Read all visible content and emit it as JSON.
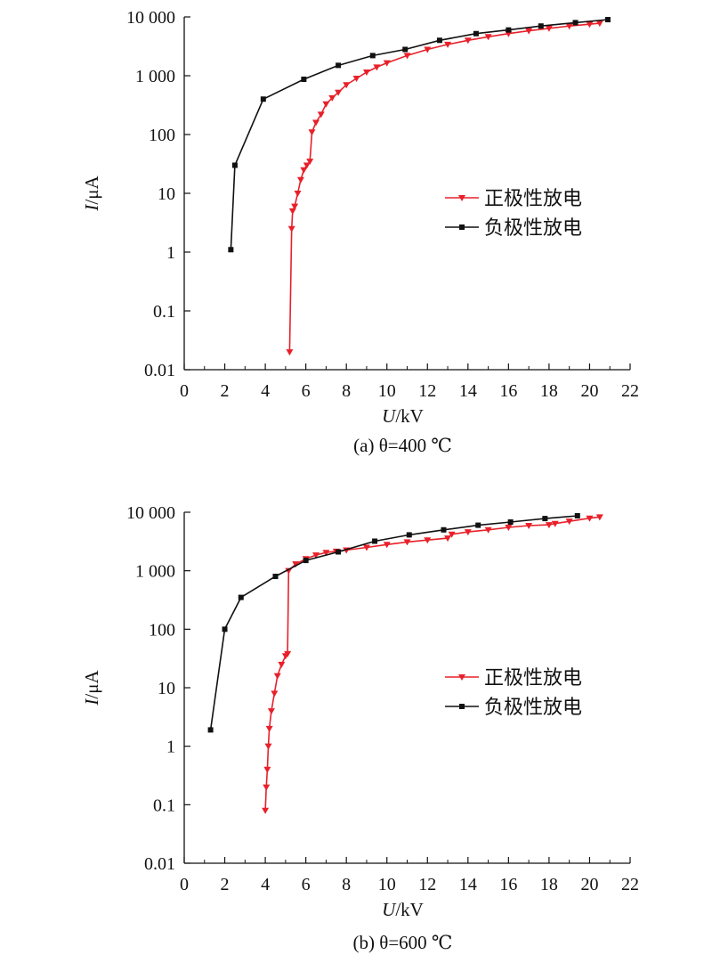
{
  "chart_data": [
    {
      "type": "line",
      "caption": "(a) θ=400 ℃",
      "xlabel_var": "U",
      "xlabel_unit": "/kV",
      "ylabel_var": "I",
      "ylabel_unit": "/μA",
      "xlim": [
        0,
        22
      ],
      "ylim": [
        0.01,
        10000
      ],
      "y_scale": "log",
      "x_ticks": [
        "0",
        "2",
        "4",
        "6",
        "8",
        "10",
        "12",
        "14",
        "16",
        "18",
        "20",
        "22"
      ],
      "y_ticks": [
        "0.01",
        "0.1",
        "1",
        "10",
        "100",
        "1 000",
        "10 000"
      ],
      "legend_position": "right-middle",
      "series": [
        {
          "name": "正极性放电",
          "color": "#e8202a",
          "marker": "triangle-down",
          "x": [
            5.2,
            5.3,
            5.35,
            5.45,
            5.6,
            5.75,
            5.9,
            6.05,
            6.2,
            6.3,
            6.5,
            6.75,
            7.0,
            7.3,
            7.6,
            8.0,
            8.5,
            9.0,
            9.5,
            10.0,
            11.0,
            12.0,
            13.0,
            14.0,
            15.0,
            16.0,
            17.0,
            18.0,
            19.0,
            20.0,
            20.5
          ],
          "y": [
            0.02,
            2.5,
            5,
            6,
            10,
            17,
            25,
            30,
            35,
            110,
            160,
            220,
            330,
            420,
            520,
            700,
            900,
            1150,
            1400,
            1650,
            2200,
            2800,
            3400,
            4000,
            4600,
            5200,
            5800,
            6400,
            7000,
            7500,
            7800
          ]
        },
        {
          "name": "负极性放电",
          "color": "#111111",
          "marker": "square",
          "x": [
            2.3,
            2.5,
            3.9,
            5.9,
            7.6,
            9.3,
            10.9,
            12.6,
            14.4,
            16.0,
            17.6,
            19.3,
            20.9
          ],
          "y": [
            1.1,
            30,
            400,
            870,
            1500,
            2200,
            2800,
            4000,
            5200,
            6000,
            7000,
            8000,
            9000
          ]
        }
      ]
    },
    {
      "type": "line",
      "caption": "(b) θ=600 ℃",
      "xlabel_var": "U",
      "xlabel_unit": "/kV",
      "ylabel_var": "I",
      "ylabel_unit": "/μA",
      "xlim": [
        0,
        22
      ],
      "ylim": [
        0.01,
        10000
      ],
      "y_scale": "log",
      "x_ticks": [
        "0",
        "2",
        "4",
        "6",
        "8",
        "10",
        "12",
        "14",
        "16",
        "18",
        "20",
        "22"
      ],
      "y_ticks": [
        "0.01",
        "0.1",
        "1",
        "10",
        "100",
        "1 000",
        "10 000"
      ],
      "legend_position": "right-middle",
      "series": [
        {
          "name": "正极性放电",
          "color": "#e8202a",
          "marker": "triangle-down",
          "x": [
            4.0,
            4.05,
            4.1,
            4.15,
            4.2,
            4.3,
            4.45,
            4.6,
            4.8,
            5.0,
            5.1,
            5.15,
            5.5,
            6.0,
            6.5,
            7.0,
            7.5,
            8.0,
            9.0,
            10.0,
            11.0,
            12.0,
            13.0,
            13.2,
            14.0,
            15.0,
            16.0,
            17.0,
            18.0,
            18.3,
            19.0,
            20.0,
            20.5
          ],
          "y": [
            0.08,
            0.2,
            0.4,
            1.0,
            2.0,
            4.0,
            8.0,
            16.0,
            25.0,
            35.0,
            38.0,
            1000.0,
            1300.0,
            1600.0,
            1850.0,
            2050.0,
            2150.0,
            2250.0,
            2500.0,
            2800.0,
            3100.0,
            3350.0,
            3600.0,
            4200.0,
            4600.0,
            5000.0,
            5500.0,
            5900.0,
            6100.0,
            6400.0,
            7000.0,
            7900.0,
            8300.0
          ]
        },
        {
          "name": "负极性放电",
          "color": "#111111",
          "marker": "square",
          "x": [
            1.3,
            2.0,
            2.8,
            4.5,
            6.0,
            7.6,
            9.4,
            11.1,
            12.8,
            14.5,
            16.1,
            17.8,
            19.4
          ],
          "y": [
            1.9,
            100,
            350,
            800,
            1500,
            2100,
            3200,
            4100,
            5000,
            6000,
            6800,
            7800,
            8700
          ]
        }
      ]
    }
  ]
}
